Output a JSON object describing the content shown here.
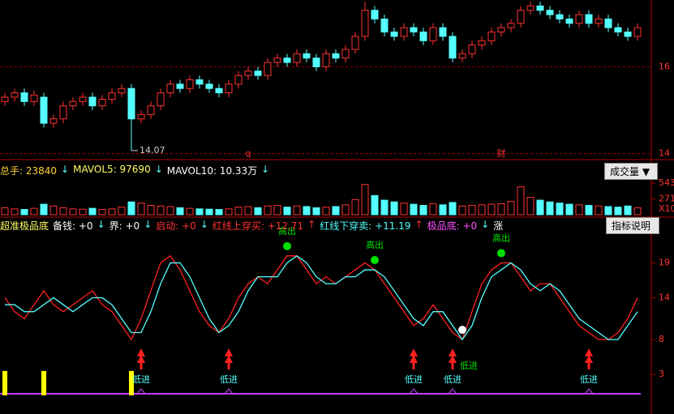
{
  "chart_data": [
    {
      "type": "candlestick",
      "open": [
        15.2,
        15.3,
        15.4,
        15.2,
        15.3,
        14.7,
        14.8,
        15.1,
        15.2,
        15.3,
        15.1,
        15.25,
        15.4,
        15.5,
        14.8,
        14.9,
        15.1,
        15.4,
        15.6,
        15.5,
        15.7,
        15.6,
        15.5,
        15.4,
        15.6,
        15.8,
        15.9,
        15.8,
        16.1,
        16.2,
        16.1,
        16.3,
        16.2,
        16.0,
        16.3,
        16.2,
        16.4,
        16.7,
        17.3,
        17.1,
        16.8,
        16.7,
        16.9,
        16.8,
        16.6,
        16.9,
        16.7,
        16.2,
        16.3,
        16.5,
        16.6,
        16.8,
        16.9,
        17.0,
        17.3,
        17.4,
        17.3,
        17.2,
        17.1,
        17.0,
        17.2,
        17.0,
        17.1,
        16.9,
        16.8,
        16.7
      ],
      "high": [
        15.4,
        15.5,
        15.5,
        15.45,
        15.4,
        14.9,
        15.2,
        15.3,
        15.4,
        15.4,
        15.35,
        15.5,
        15.6,
        15.6,
        15.0,
        15.2,
        15.5,
        15.7,
        15.7,
        15.8,
        15.8,
        15.7,
        15.6,
        15.7,
        15.9,
        16.0,
        16.0,
        16.2,
        16.3,
        16.3,
        16.4,
        16.4,
        16.3,
        16.4,
        16.4,
        16.5,
        16.8,
        17.5,
        17.4,
        17.2,
        16.9,
        17.0,
        17.0,
        16.9,
        17.0,
        17.0,
        16.8,
        16.4,
        16.6,
        16.7,
        16.9,
        17.0,
        17.1,
        17.4,
        17.5,
        17.5,
        17.4,
        17.3,
        17.2,
        17.3,
        17.3,
        17.2,
        17.2,
        17.0,
        16.9,
        17.0
      ],
      "low": [
        15.1,
        15.2,
        15.1,
        15.1,
        14.6,
        14.6,
        14.7,
        15.0,
        15.1,
        15.0,
        15.0,
        15.15,
        15.3,
        14.07,
        14.7,
        14.8,
        15.0,
        15.3,
        15.4,
        15.4,
        15.5,
        15.4,
        15.3,
        15.3,
        15.5,
        15.7,
        15.7,
        15.7,
        16.0,
        16.0,
        16.0,
        16.1,
        15.9,
        15.9,
        16.1,
        16.1,
        16.3,
        16.6,
        17.0,
        16.7,
        16.6,
        16.6,
        16.7,
        16.5,
        16.5,
        16.6,
        16.1,
        16.1,
        16.2,
        16.4,
        16.5,
        16.7,
        16.8,
        16.9,
        17.2,
        17.2,
        17.1,
        17.0,
        16.9,
        16.9,
        16.9,
        16.9,
        16.8,
        16.7,
        16.6,
        16.6
      ],
      "close": [
        15.3,
        15.4,
        15.2,
        15.35,
        14.7,
        14.8,
        15.1,
        15.2,
        15.3,
        15.1,
        15.25,
        15.4,
        15.5,
        14.8,
        14.9,
        15.1,
        15.4,
        15.6,
        15.5,
        15.7,
        15.6,
        15.5,
        15.4,
        15.6,
        15.8,
        15.9,
        15.8,
        16.1,
        16.2,
        16.1,
        16.3,
        16.2,
        16.0,
        16.3,
        16.2,
        16.4,
        16.7,
        17.3,
        17.1,
        16.8,
        16.7,
        16.9,
        16.8,
        16.6,
        16.9,
        16.7,
        16.2,
        16.3,
        16.5,
        16.6,
        16.8,
        16.9,
        17.0,
        17.3,
        17.4,
        17.3,
        17.2,
        17.1,
        17.0,
        17.2,
        17.0,
        17.1,
        16.9,
        16.8,
        16.7,
        16.9
      ],
      "up_color": "#ff3232",
      "down_color": "#54ffff",
      "ylim": [
        13.9,
        17.5
      ],
      "yticks": [
        16,
        14
      ],
      "grid": true,
      "low_label": "14.07",
      "events": [
        {
          "label": "q",
          "at": 25
        },
        {
          "label": "财",
          "at": 51
        }
      ]
    },
    {
      "type": "volume",
      "header": [
        {
          "label": "总手: 23840",
          "color": "#ffd23c"
        },
        {
          "label": "↓",
          "color": "#54ffff"
        },
        {
          "label": "MAVOL5: 97690",
          "color": "#ffff64"
        },
        {
          "label": "↓",
          "color": "#54ffff"
        },
        {
          "label": "MAVOL10: 10.33万",
          "color": "#ffffff"
        },
        {
          "label": "↓",
          "color": "#54ffff"
        }
      ],
      "button": "成交量 ▼",
      "values": [
        120,
        100,
        90,
        110,
        180,
        150,
        120,
        100,
        95,
        110,
        90,
        100,
        130,
        220,
        200,
        160,
        150,
        140,
        120,
        110,
        100,
        95,
        90,
        100,
        130,
        140,
        120,
        150,
        160,
        130,
        150,
        140,
        120,
        130,
        140,
        170,
        260,
        520,
        330,
        250,
        220,
        200,
        180,
        160,
        190,
        170,
        210,
        150,
        160,
        170,
        180,
        190,
        230,
        480,
        300,
        250,
        220,
        200,
        180,
        170,
        160,
        150,
        140,
        130,
        150,
        120
      ],
      "ylim": [
        0,
        600
      ],
      "yticks": [
        543,
        271
      ],
      "unit": "X10"
    },
    {
      "type": "line",
      "header": [
        {
          "label": "超准极品底",
          "color": "#ffff64"
        },
        {
          "label": "备钱: +0",
          "color": "#ffffff"
        },
        {
          "label": "↓",
          "color": "#54ffff"
        },
        {
          "label": "界: +0",
          "color": "#ffffff"
        },
        {
          "label": "↓",
          "color": "#54ffff"
        },
        {
          "label": "启动: +0",
          "color": "#ff3232"
        },
        {
          "label": "↓",
          "color": "#54ffff"
        },
        {
          "label": "红线上穿买: +12.71",
          "color": "#ff3232"
        },
        {
          "label": "↑",
          "color": "#ff3232"
        },
        {
          "label": "红线下穿卖: +11.19",
          "color": "#54ffff"
        },
        {
          "label": "↑",
          "color": "#ff3232"
        },
        {
          "label": "极品底: +0",
          "color": "#ff50ff"
        },
        {
          "label": "↓",
          "color": "#54ffff"
        },
        {
          "label": "涨",
          "color": "#ffffff"
        }
      ],
      "button": "指标说明",
      "series": [
        {
          "color": "#ff2020",
          "values": [
            14,
            12,
            11,
            13,
            15,
            13,
            12,
            13,
            14,
            15,
            13,
            12,
            10,
            8,
            11,
            15,
            19,
            20,
            18,
            15,
            12,
            10,
            9,
            11,
            14,
            16,
            17,
            16,
            18,
            20,
            20,
            18,
            16,
            17,
            16,
            17,
            18,
            19,
            18,
            16,
            14,
            12,
            10,
            11,
            13,
            11,
            9,
            8,
            12,
            16,
            18,
            19,
            19,
            17,
            15,
            16,
            16,
            14,
            12,
            10,
            9,
            8,
            8,
            9,
            11,
            14
          ]
        },
        {
          "color": "#54ffff",
          "values": [
            13,
            13,
            12,
            12,
            13,
            14,
            13,
            12,
            13,
            14,
            14,
            13,
            11,
            9,
            9,
            12,
            16,
            19,
            19,
            17,
            14,
            11,
            9,
            10,
            12,
            15,
            17,
            17,
            17,
            19,
            20,
            19,
            17,
            16,
            16,
            17,
            17,
            18,
            18,
            17,
            15,
            13,
            11,
            10,
            12,
            12,
            10,
            8,
            10,
            14,
            17,
            18,
            19,
            18,
            16,
            15,
            16,
            15,
            13,
            11,
            10,
            9,
            8,
            8,
            10,
            12
          ]
        }
      ],
      "ylim": [
        0,
        23
      ],
      "yticks": [
        19,
        14,
        8,
        3
      ],
      "sell_signals": {
        "label": "高出",
        "color": "#00e000",
        "at": [
          29,
          38,
          51
        ]
      },
      "buy_signals": {
        "label": "低进",
        "color": "#ff2020",
        "at": [
          14,
          23,
          42,
          46,
          60
        ]
      },
      "special_signal": {
        "label": "低进",
        "color": "#ffffff",
        "at": 47
      },
      "bottom_bars": {
        "color": "#ffff00",
        "at": [
          0,
          4,
          13
        ],
        "values": [
          3.5,
          3.5,
          3.5
        ]
      }
    }
  ]
}
